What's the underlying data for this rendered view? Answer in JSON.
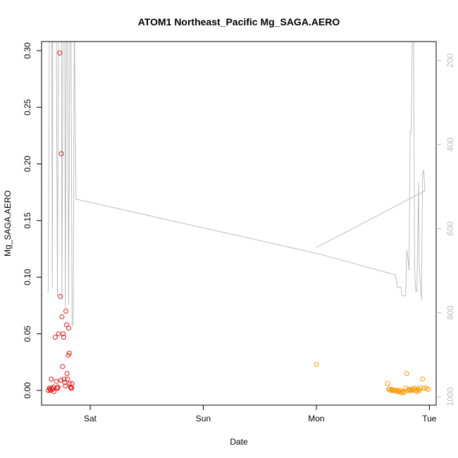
{
  "chart_data": {
    "type": "scatter",
    "title": "ATOM1 Northeast_Pacific Mg_SAGA.AERO",
    "xlabel": "Date",
    "ylabel": "Mg_SAGA.AERO",
    "x_unit": "days",
    "x_ticks": [
      {
        "label": "Sat",
        "value": 0
      },
      {
        "label": "Sun",
        "value": 1
      },
      {
        "label": "Mon",
        "value": 2
      },
      {
        "label": "Tue",
        "value": 3
      }
    ],
    "xlim": [
      -0.43,
      3.06
    ],
    "ylim": [
      -0.013,
      0.308
    ],
    "y_ticks": [
      0.0,
      0.05,
      0.1,
      0.15,
      0.2,
      0.25,
      0.3
    ],
    "y_tick_labels": [
      "0.00",
      "0.05",
      "0.10",
      "0.15",
      "0.20",
      "0.25",
      "0.30"
    ],
    "right_axis": {
      "label": "",
      "color": "#bdbdbd",
      "reversed": true,
      "ylim": [
        1020,
        155
      ],
      "ticks": [
        200,
        400,
        600,
        800,
        1000
      ]
    },
    "colors": {
      "series_a": "#e41a1c",
      "series_b": "#ff9900",
      "altitude_line": "#bdbdbd",
      "axes": "#000000"
    },
    "series": [
      {
        "color": "#e41a1c",
        "points": [
          [
            -0.37,
            0.0
          ],
          [
            -0.36,
            0.002
          ],
          [
            -0.355,
            0.001
          ],
          [
            -0.35,
            0.0
          ],
          [
            -0.345,
            0.01
          ],
          [
            -0.34,
            0.002
          ],
          [
            -0.33,
            0.001
          ],
          [
            -0.325,
            0.003
          ],
          [
            -0.32,
            -0.001
          ],
          [
            -0.31,
            0.047
          ],
          [
            -0.3,
            0.008
          ],
          [
            -0.295,
            0.002
          ],
          [
            -0.29,
            0.002
          ],
          [
            -0.285,
            0.003
          ],
          [
            -0.28,
            0.05
          ],
          [
            -0.27,
            0.298
          ],
          [
            -0.265,
            0.083
          ],
          [
            -0.26,
            0.009
          ],
          [
            -0.255,
            0.209
          ],
          [
            -0.25,
            0.065
          ],
          [
            -0.245,
            0.021
          ],
          [
            -0.24,
            0.05
          ],
          [
            -0.235,
            0.047
          ],
          [
            -0.23,
            0.01
          ],
          [
            -0.225,
            0.007
          ],
          [
            -0.22,
            0.004
          ],
          [
            -0.215,
            0.07
          ],
          [
            -0.21,
            0.058
          ],
          [
            -0.205,
            0.015
          ],
          [
            -0.2,
            0.01
          ],
          [
            -0.195,
            0.031
          ],
          [
            -0.19,
            0.055
          ],
          [
            -0.185,
            0.033
          ],
          [
            -0.18,
            0.006
          ],
          [
            -0.175,
            0.003
          ],
          [
            -0.17,
            0.002
          ],
          [
            -0.165,
            0.002
          ],
          [
            -0.16,
            0.006
          ]
        ]
      },
      {
        "color": "#ff9900",
        "points": [
          [
            2.0,
            0.023
          ],
          [
            2.63,
            0.006
          ],
          [
            2.64,
            0.001
          ],
          [
            2.65,
            0.001
          ],
          [
            2.66,
            0.0
          ],
          [
            2.67,
            0.001
          ],
          [
            2.68,
            0.0
          ],
          [
            2.69,
            0.0
          ],
          [
            2.7,
            0.0
          ],
          [
            2.71,
            -0.001
          ],
          [
            2.72,
            0.0
          ],
          [
            2.73,
            -0.001
          ],
          [
            2.74,
            0.0
          ],
          [
            2.75,
            -0.002
          ],
          [
            2.76,
            -0.001
          ],
          [
            2.77,
            -0.002
          ],
          [
            2.78,
            -0.001
          ],
          [
            2.79,
            0.002
          ],
          [
            2.8,
            0.015
          ],
          [
            2.81,
            0.0
          ],
          [
            2.82,
            0.001
          ],
          [
            2.83,
            0.0
          ],
          [
            2.84,
            0.001
          ],
          [
            2.85,
            0.0
          ],
          [
            2.86,
            0.001
          ],
          [
            2.87,
            0.002
          ],
          [
            2.88,
            0.0
          ],
          [
            2.89,
            -0.001
          ],
          [
            2.9,
            0.001
          ],
          [
            2.91,
            0.0
          ],
          [
            2.92,
            0.002
          ],
          [
            2.94,
            0.01
          ],
          [
            2.95,
            0.002
          ],
          [
            2.97,
            0.002
          ],
          [
            2.99,
            0.001
          ]
        ]
      }
    ],
    "altitude_line": [
      [
        -0.38,
        750
      ],
      [
        -0.37,
        750
      ],
      [
        -0.36,
        100
      ],
      [
        -0.35,
        100
      ],
      [
        -0.34,
        100
      ],
      [
        -0.335,
        740
      ],
      [
        -0.33,
        100
      ],
      [
        -0.31,
        100
      ],
      [
        -0.3,
        100
      ],
      [
        -0.29,
        760
      ],
      [
        -0.28,
        100
      ],
      [
        -0.27,
        100
      ],
      [
        -0.26,
        100
      ],
      [
        -0.255,
        100
      ],
      [
        -0.25,
        770
      ],
      [
        -0.24,
        100
      ],
      [
        -0.23,
        100
      ],
      [
        -0.225,
        100
      ],
      [
        -0.22,
        790
      ],
      [
        -0.21,
        100
      ],
      [
        -0.2,
        100
      ],
      [
        -0.19,
        780
      ],
      [
        -0.18,
        100
      ],
      [
        -0.17,
        100
      ],
      [
        -0.16,
        830
      ],
      [
        -0.15,
        830
      ],
      [
        -0.14,
        100
      ],
      [
        -0.125,
        530
      ],
      [
        2.02,
        660
      ],
      [
        2.7,
        710
      ],
      [
        2.72,
        740
      ],
      [
        2.75,
        740
      ],
      [
        2.76,
        760
      ],
      [
        2.79,
        760
      ],
      [
        2.8,
        650
      ],
      [
        2.81,
        670
      ],
      [
        2.82,
        700
      ],
      [
        2.83,
        370
      ],
      [
        2.84,
        370
      ],
      [
        2.85,
        100
      ],
      [
        2.86,
        100
      ],
      [
        2.87,
        700
      ],
      [
        2.88,
        750
      ],
      [
        2.89,
        750
      ],
      [
        2.905,
        490
      ],
      [
        2.91,
        690
      ],
      [
        2.93,
        770
      ],
      [
        2.94,
        470
      ],
      [
        2.95,
        460
      ],
      [
        2.96,
        510
      ],
      [
        2.0,
        645
      ],
      [
        2.96,
        510
      ]
    ]
  }
}
